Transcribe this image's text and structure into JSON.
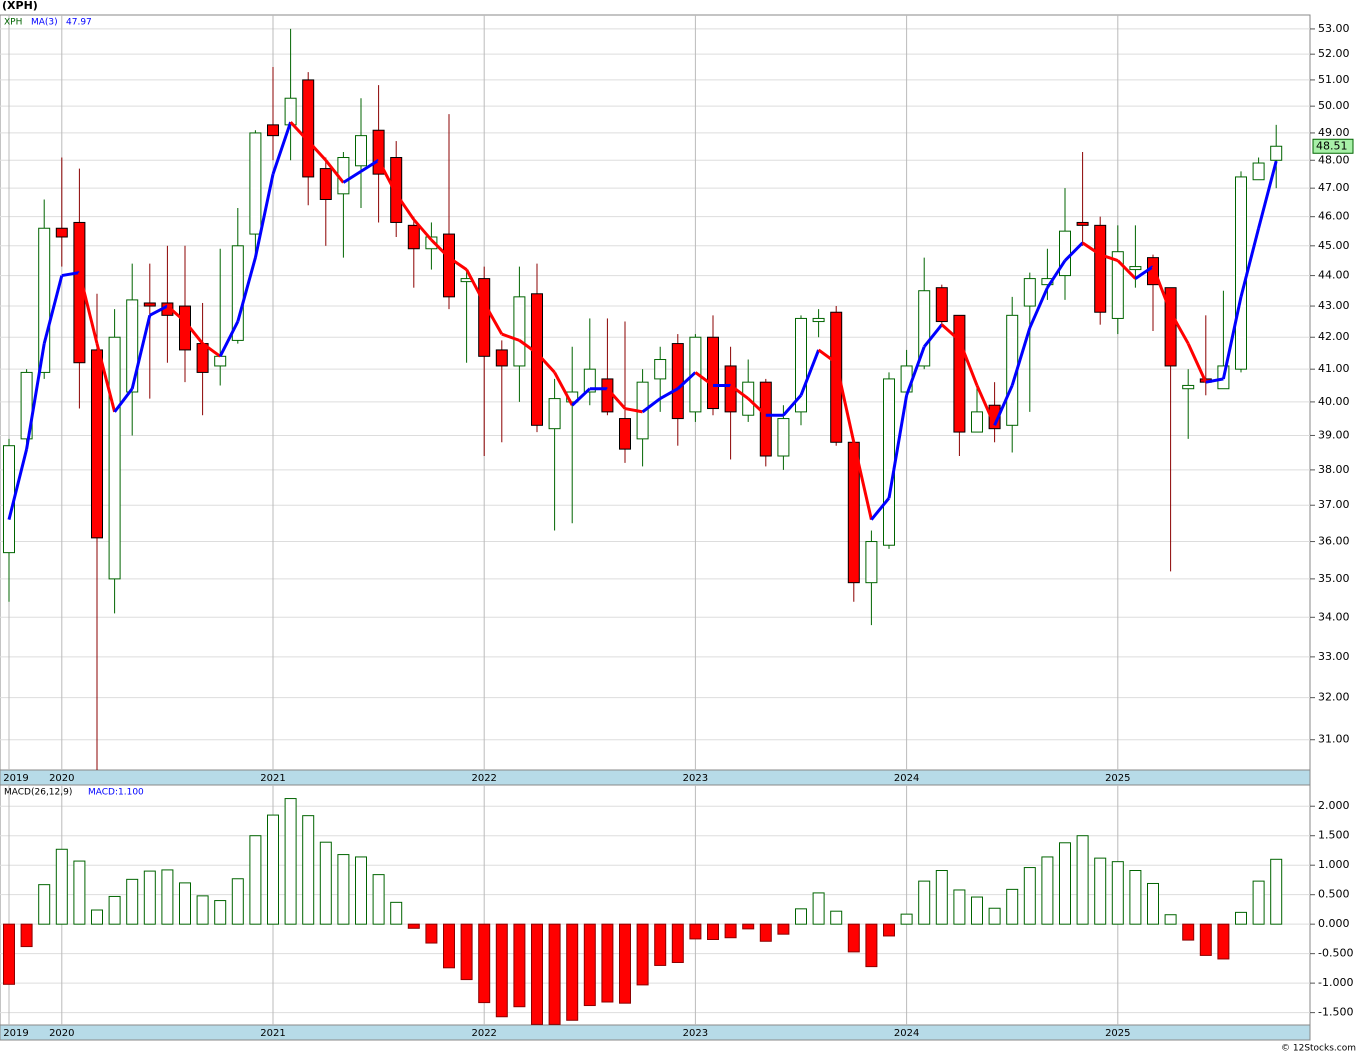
{
  "chart_data": [
    {
      "type": "candlestick",
      "title": "(XPH)",
      "legend": [
        "XPH"
      ],
      "categories": [
        "2019",
        null,
        null,
        "2020",
        null,
        null,
        null,
        null,
        null,
        null,
        null,
        null,
        null,
        null,
        null,
        "2021",
        null,
        null,
        null,
        null,
        null,
        null,
        null,
        null,
        null,
        null,
        null,
        "2022",
        null,
        null,
        null,
        null,
        null,
        null,
        null,
        null,
        null,
        null,
        null,
        "2023",
        null,
        null,
        null,
        null,
        null,
        null,
        null,
        null,
        null,
        null,
        null,
        "2024",
        null,
        null,
        null,
        null,
        null,
        null,
        null,
        null,
        null,
        null,
        null,
        "2025",
        null,
        null,
        null,
        null,
        null,
        null,
        null,
        null,
        null
      ],
      "open": [
        35.7,
        38.9,
        40.9,
        45.6,
        45.8,
        41.6,
        35.0,
        40.3,
        43.1,
        43.1,
        43.0,
        41.8,
        41.1,
        41.9,
        45.4,
        49.3,
        49.3,
        51.0,
        47.7,
        46.8,
        47.8,
        49.1,
        48.1,
        45.7,
        44.9,
        45.4,
        43.8,
        43.9,
        41.6,
        41.1,
        43.4,
        39.2,
        40.0,
        40.3,
        40.7,
        39.5,
        38.9,
        40.7,
        41.8,
        39.7,
        42.0,
        41.1,
        39.6,
        40.6,
        38.4,
        39.7,
        42.5,
        42.8,
        38.8,
        34.9,
        35.9,
        40.3,
        41.1,
        43.6,
        42.7,
        39.1,
        39.9,
        39.3,
        43.0,
        43.7,
        44.0,
        45.8,
        45.7,
        42.6,
        44.2,
        44.6,
        43.6,
        40.4,
        40.7,
        40.4,
        41.0,
        47.3,
        48.0
      ],
      "high": [
        38.9,
        41.0,
        46.6,
        48.1,
        47.7,
        43.4,
        42.9,
        44.4,
        44.4,
        45.0,
        45.0,
        43.1,
        44.9,
        46.3,
        49.1,
        51.5,
        53.0,
        51.3,
        48.1,
        48.3,
        50.3,
        50.8,
        48.7,
        46.0,
        45.8,
        49.7,
        44.2,
        44.3,
        41.9,
        44.3,
        44.4,
        40.7,
        41.7,
        42.6,
        42.6,
        42.5,
        41.0,
        41.7,
        42.1,
        42.1,
        42.7,
        41.7,
        41.3,
        40.7,
        39.9,
        42.7,
        42.9,
        43.0,
        38.9,
        36.3,
        40.9,
        41.6,
        44.6,
        43.7,
        42.7,
        40.5,
        40.6,
        43.3,
        44.1,
        44.9,
        47.0,
        48.3,
        46.0,
        45.7,
        45.7,
        44.7,
        43.6,
        41.0,
        42.7,
        43.5,
        47.6,
        48.1,
        49.3
      ],
      "low": [
        34.4,
        38.6,
        40.7,
        44.3,
        39.8,
        30.3,
        34.1,
        39.0,
        40.1,
        41.2,
        40.6,
        39.6,
        40.5,
        41.8,
        44.6,
        48.0,
        48.0,
        46.4,
        45.0,
        44.6,
        46.3,
        45.8,
        45.3,
        43.6,
        44.2,
        42.9,
        41.2,
        38.4,
        38.8,
        40.0,
        39.1,
        36.3,
        36.5,
        39.9,
        39.6,
        38.2,
        38.1,
        39.7,
        38.7,
        39.4,
        39.6,
        38.3,
        39.4,
        38.1,
        38.0,
        39.3,
        42.0,
        38.7,
        34.4,
        33.8,
        35.8,
        40.3,
        41.0,
        42.4,
        38.4,
        39.1,
        38.8,
        38.5,
        39.7,
        43.2,
        43.2,
        45.0,
        42.4,
        42.1,
        43.6,
        42.2,
        35.2,
        38.9,
        40.2,
        40.4,
        40.9,
        47.3,
        47.0
      ],
      "close": [
        38.7,
        40.9,
        45.6,
        45.3,
        41.2,
        36.1,
        42.0,
        43.2,
        43.0,
        42.7,
        41.6,
        40.9,
        41.4,
        45.0,
        49.0,
        48.9,
        50.3,
        47.4,
        46.6,
        48.1,
        48.9,
        47.5,
        45.8,
        44.9,
        45.3,
        43.3,
        43.9,
        41.4,
        41.1,
        43.3,
        39.3,
        40.1,
        40.3,
        41.0,
        39.7,
        38.6,
        40.6,
        41.3,
        39.5,
        42.0,
        39.8,
        39.7,
        40.6,
        38.4,
        39.5,
        42.6,
        42.6,
        38.8,
        34.9,
        36.0,
        40.7,
        41.1,
        43.5,
        42.5,
        39.1,
        39.7,
        39.2,
        42.7,
        43.9,
        43.9,
        45.5,
        45.7,
        42.8,
        44.8,
        44.3,
        43.7,
        41.1,
        40.5,
        40.6,
        41.1,
        47.4,
        47.9,
        48.51
      ],
      "up_color": "#006400",
      "down_color": "#ff0000",
      "series": [
        {
          "name": "MA(3)",
          "up_color": "#0000ff",
          "down_color": "#ff0000",
          "values": [
            36.6,
            38.6,
            41.8,
            44.0,
            44.1,
            41.8,
            39.7,
            40.4,
            42.7,
            43.0,
            42.5,
            41.8,
            41.4,
            42.5,
            44.6,
            47.5,
            49.4,
            48.7,
            48.0,
            47.2,
            47.6,
            48.0,
            46.8,
            45.9,
            45.2,
            44.6,
            44.2,
            43.1,
            42.1,
            41.9,
            41.5,
            40.9,
            39.9,
            40.4,
            40.4,
            39.8,
            39.7,
            40.1,
            40.4,
            40.9,
            40.5,
            40.5,
            40.1,
            39.6,
            39.6,
            40.2,
            41.6,
            41.2,
            38.8,
            36.6,
            37.2,
            40.2,
            41.7,
            42.4,
            41.9,
            40.5,
            39.3,
            40.5,
            42.3,
            43.6,
            44.5,
            45.1,
            44.7,
            44.5,
            43.9,
            44.3,
            42.8,
            41.8,
            40.6,
            40.7,
            43.3,
            45.6,
            47.97
          ]
        }
      ],
      "ylim": [
        30.3,
        53.56
      ],
      "log_scale": true,
      "grid": true,
      "yticks": [
        {
          "value": 53,
          "label": "53.00"
        },
        {
          "value": 52,
          "label": "52.00"
        },
        {
          "value": 51,
          "label": "51.00"
        },
        {
          "value": 50,
          "label": "50.00"
        },
        {
          "value": 49,
          "label": "49.00"
        },
        {
          "value": 48,
          "label": "48.00"
        },
        {
          "value": 47,
          "label": "47.00"
        },
        {
          "value": 46,
          "label": "46.00"
        },
        {
          "value": 45,
          "label": "45.00"
        },
        {
          "value": 44,
          "label": "44.00"
        },
        {
          "value": 43,
          "label": "43.00"
        },
        {
          "value": 42,
          "label": "42.00"
        },
        {
          "value": 41,
          "label": "41.00"
        },
        {
          "value": 40,
          "label": "40.00"
        },
        {
          "value": 39,
          "label": "39.00"
        },
        {
          "value": 38,
          "label": "38.00"
        },
        {
          "value": 37,
          "label": "37.00"
        },
        {
          "value": 36,
          "label": "36.00"
        },
        {
          "value": 35,
          "label": "35.00"
        },
        {
          "value": 34,
          "label": "34.00"
        },
        {
          "value": 33,
          "label": "33.00"
        },
        {
          "value": 32,
          "label": "32.00"
        },
        {
          "value": 31,
          "label": "31.00"
        }
      ]
    },
    {
      "type": "bar",
      "title": "MACD(26,12,9)",
      "legend": [
        "MACD:1.100"
      ],
      "values": [
        -1.02,
        -0.38,
        0.67,
        1.27,
        1.07,
        0.24,
        0.47,
        0.76,
        0.9,
        0.92,
        0.7,
        0.48,
        0.4,
        0.77,
        1.5,
        1.85,
        2.13,
        1.84,
        1.39,
        1.18,
        1.14,
        0.84,
        0.37,
        -0.07,
        -0.32,
        -0.74,
        -0.94,
        -1.33,
        -1.57,
        -1.4,
        -1.7,
        -1.7,
        -1.63,
        -1.38,
        -1.32,
        -1.34,
        -1.03,
        -0.7,
        -0.65,
        -0.25,
        -0.26,
        -0.23,
        -0.08,
        -0.29,
        -0.17,
        0.26,
        0.53,
        0.22,
        -0.47,
        -0.72,
        -0.2,
        0.17,
        0.73,
        0.91,
        0.58,
        0.46,
        0.27,
        0.59,
        0.96,
        1.14,
        1.38,
        1.5,
        1.12,
        1.06,
        0.91,
        0.69,
        0.16,
        -0.27,
        -0.53,
        -0.59,
        0.2,
        0.73,
        1.1
      ],
      "up_color": "#006400",
      "down_color": "#ff0000",
      "ylim": [
        -1.71,
        2.36
      ],
      "grid": true,
      "yticks": [
        {
          "value": 2,
          "label": "2.000"
        },
        {
          "value": 1.5,
          "label": "1.500"
        },
        {
          "value": 1,
          "label": "1.000"
        },
        {
          "value": 0.5,
          "label": "0.500"
        },
        {
          "value": 0,
          "label": "0.000"
        },
        {
          "value": -0.5,
          "label": "-0.500"
        },
        {
          "value": -1,
          "label": "-1.000"
        },
        {
          "value": -1.5,
          "label": "-1.500"
        }
      ]
    }
  ],
  "footer": "© 12Stocks.com"
}
